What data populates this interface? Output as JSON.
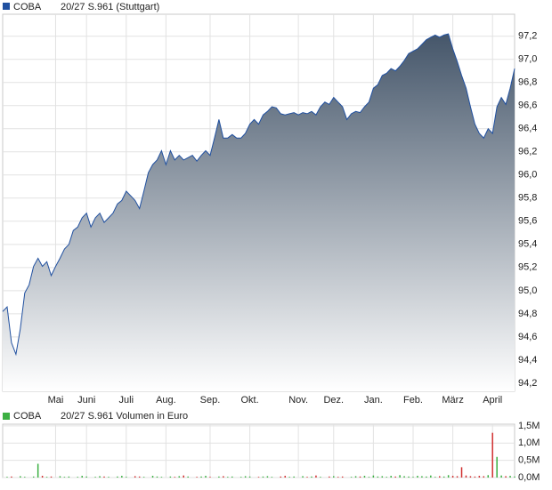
{
  "chart_data": [
    {
      "type": "area",
      "legend_symbol": "COBA",
      "title": "20/27 S.961 (Stuttgart)",
      "color": "#2050a0",
      "fill_top": "#45566a",
      "fill_bottom": "#ffffff",
      "categories": [
        null,
        null,
        null,
        null,
        null,
        null,
        null,
        null,
        null,
        null,
        null,
        null,
        "Mai",
        null,
        null,
        null,
        null,
        null,
        null,
        "Juni",
        null,
        null,
        null,
        null,
        null,
        null,
        null,
        null,
        "Juli",
        null,
        null,
        null,
        null,
        null,
        null,
        null,
        null,
        "Aug.",
        null,
        null,
        null,
        null,
        null,
        null,
        null,
        null,
        null,
        "Sep.",
        null,
        null,
        null,
        null,
        null,
        null,
        null,
        null,
        "Okt.",
        null,
        null,
        null,
        null,
        null,
        null,
        null,
        null,
        null,
        null,
        "Nov.",
        null,
        null,
        null,
        null,
        null,
        null,
        null,
        "Dez.",
        null,
        null,
        null,
        null,
        null,
        null,
        null,
        null,
        "Jan.",
        null,
        null,
        null,
        null,
        null,
        null,
        null,
        null,
        "Feb.",
        null,
        null,
        null,
        null,
        null,
        null,
        null,
        null,
        "März",
        null,
        null,
        null,
        null,
        null,
        null,
        null,
        null,
        "April",
        null,
        null,
        null,
        null,
        null
      ],
      "values": [
        94.82,
        94.86,
        94.55,
        94.45,
        94.67,
        94.98,
        95.05,
        95.21,
        95.28,
        95.21,
        95.25,
        95.13,
        95.21,
        95.28,
        95.36,
        95.4,
        95.52,
        95.55,
        95.63,
        95.67,
        95.55,
        95.63,
        95.67,
        95.59,
        95.63,
        95.67,
        95.75,
        95.78,
        95.86,
        95.82,
        95.78,
        95.71,
        95.86,
        96.02,
        96.09,
        96.13,
        96.21,
        96.09,
        96.21,
        96.13,
        96.17,
        96.13,
        96.15,
        96.17,
        96.12,
        96.17,
        96.21,
        96.17,
        96.32,
        96.48,
        96.32,
        96.32,
        96.35,
        96.32,
        96.32,
        96.36,
        96.44,
        96.48,
        96.44,
        96.52,
        96.55,
        96.59,
        96.58,
        96.53,
        96.52,
        96.53,
        96.54,
        96.52,
        96.54,
        96.53,
        96.55,
        96.52,
        96.59,
        96.63,
        96.61,
        96.67,
        96.63,
        96.59,
        96.48,
        96.53,
        96.55,
        96.54,
        96.59,
        96.63,
        96.75,
        96.78,
        96.86,
        96.88,
        96.92,
        96.9,
        96.94,
        96.99,
        97.05,
        97.07,
        97.09,
        97.13,
        97.17,
        97.19,
        97.21,
        97.19,
        97.21,
        97.22,
        97.09,
        96.98,
        96.86,
        96.75,
        96.59,
        96.44,
        96.36,
        96.32,
        96.4,
        96.36,
        96.59,
        96.67,
        96.61,
        96.75,
        96.92
      ],
      "ylim": [
        94.13,
        97.39
      ],
      "yticks": [
        {
          "value": 94.2,
          "label": "94,2"
        },
        {
          "value": 94.4,
          "label": "94,4"
        },
        {
          "value": 94.6,
          "label": "94,6"
        },
        {
          "value": 94.8,
          "label": "94,8"
        },
        {
          "value": 95.0,
          "label": "95,0"
        },
        {
          "value": 95.2,
          "label": "95,2"
        },
        {
          "value": 95.4,
          "label": "95,4"
        },
        {
          "value": 95.6,
          "label": "95,6"
        },
        {
          "value": 95.8,
          "label": "95,8"
        },
        {
          "value": 96.0,
          "label": "96,0"
        },
        {
          "value": 96.2,
          "label": "96,2"
        },
        {
          "value": 96.4,
          "label": "96,4"
        },
        {
          "value": 96.6,
          "label": "96,6"
        },
        {
          "value": 96.8,
          "label": "96,8"
        },
        {
          "value": 97.0,
          "label": "97,0"
        },
        {
          "value": 97.2,
          "label": "97,2"
        }
      ],
      "grid": true
    },
    {
      "type": "bar",
      "legend_symbol": "COBA",
      "title": "20/27 S.961 Volumen in Euro",
      "color": "#3cb043",
      "up_color": "#3cb043",
      "down_color": "#d03030",
      "values": [
        0,
        20000,
        30000,
        0,
        40000,
        20000,
        0,
        30000,
        400000,
        50000,
        20000,
        30000,
        0,
        40000,
        20000,
        30000,
        0,
        20000,
        50000,
        30000,
        0,
        20000,
        40000,
        30000,
        20000,
        0,
        30000,
        50000,
        20000,
        0,
        40000,
        30000,
        20000,
        0,
        50000,
        30000,
        20000,
        0,
        30000,
        20000,
        40000,
        60000,
        30000,
        0,
        20000,
        30000,
        50000,
        20000,
        0,
        30000,
        40000,
        20000,
        30000,
        0,
        20000,
        40000,
        30000,
        0,
        20000,
        30000,
        40000,
        20000,
        0,
        30000,
        50000,
        20000,
        30000,
        0,
        40000,
        20000,
        30000,
        60000,
        20000,
        0,
        30000,
        40000,
        20000,
        30000,
        0,
        20000,
        40000,
        30000,
        50000,
        20000,
        60000,
        30000,
        40000,
        20000,
        50000,
        30000,
        70000,
        40000,
        30000,
        20000,
        50000,
        40000,
        30000,
        60000,
        20000,
        40000,
        30000,
        70000,
        50000,
        40000,
        300000,
        60000,
        40000,
        30000,
        50000,
        40000,
        70000,
        1300000,
        600000,
        60000,
        40000,
        50000,
        30000
      ],
      "ylim": [
        0,
        1550000
      ],
      "yticks": [
        {
          "value": 0,
          "label": "0,0M"
        },
        {
          "value": 500000,
          "label": "0,5M"
        },
        {
          "value": 1000000,
          "label": "1,0M"
        },
        {
          "value": 1500000,
          "label": "1,5M"
        }
      ],
      "grid": true
    }
  ]
}
